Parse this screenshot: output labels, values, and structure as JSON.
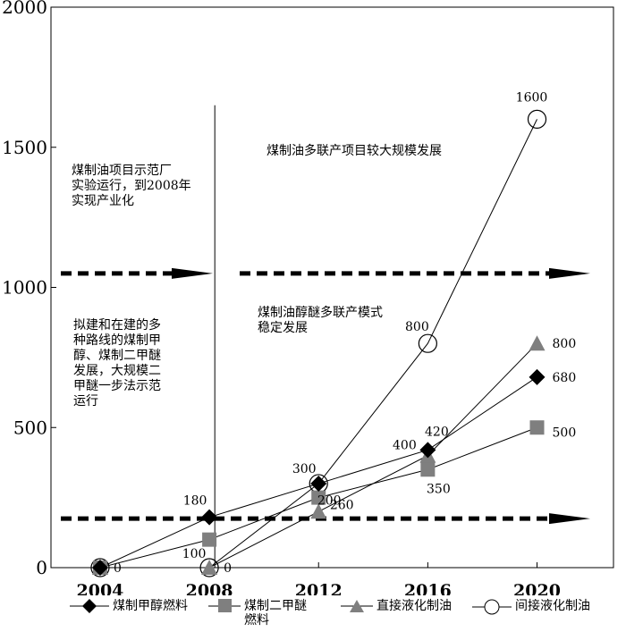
{
  "chart_data": {
    "type": "line",
    "x": [
      2004,
      2008,
      2012,
      2016,
      2020
    ],
    "xticks": [
      "2004",
      "2008",
      "2012",
      "2016",
      "2020"
    ],
    "yticks": [
      "0",
      "500",
      "1000",
      "1500",
      "2000"
    ],
    "ylim": [
      0,
      2000
    ],
    "xlim": [
      2002.2,
      2022.8
    ],
    "grid": false,
    "legend_position": "bottom",
    "series": [
      {
        "name": "煤制甲醇燃料",
        "marker": "diamond",
        "values": [
          0,
          180,
          300,
          420,
          680
        ],
        "labels": [
          "",
          "180",
          "300",
          "420",
          "680"
        ]
      },
      {
        "name": "煤制二甲醚燃料",
        "marker": "square",
        "values": [
          0,
          100,
          250,
          350,
          500
        ],
        "labels": [
          "",
          "",
          "",
          "350",
          "500"
        ]
      },
      {
        "name": "直接液化制油",
        "marker": "triangle",
        "values": [
          0,
          0,
          200,
          400,
          800
        ],
        "labels": [
          "0",
          "",
          "200",
          "400",
          "800"
        ]
      },
      {
        "name": "间接液化制油",
        "marker": "circle",
        "values": [
          0,
          0,
          300,
          800,
          1600
        ],
        "labels": [
          "",
          "0",
          "",
          "800",
          "1600"
        ]
      }
    ],
    "extra_labels": {
      "s3_2012": "260",
      "s4_2008": "100"
    },
    "annotations": {
      "pilot": "煤制油项目示范厂\n实验运行，到2008年\n实现产业化",
      "large_scale": "煤制油多联产项目较大规模发展",
      "multi_route": "拟建和在建的多\n种路线的煤制甲\n醇、煤制二甲醚\n发展，大规模二\n甲醚一步法示范\n运行",
      "stable": "煤制油醇醚多联产模式\n稳定发展"
    },
    "arrow_levels": [
      1050,
      175
    ],
    "divider_x": 2008.2
  }
}
